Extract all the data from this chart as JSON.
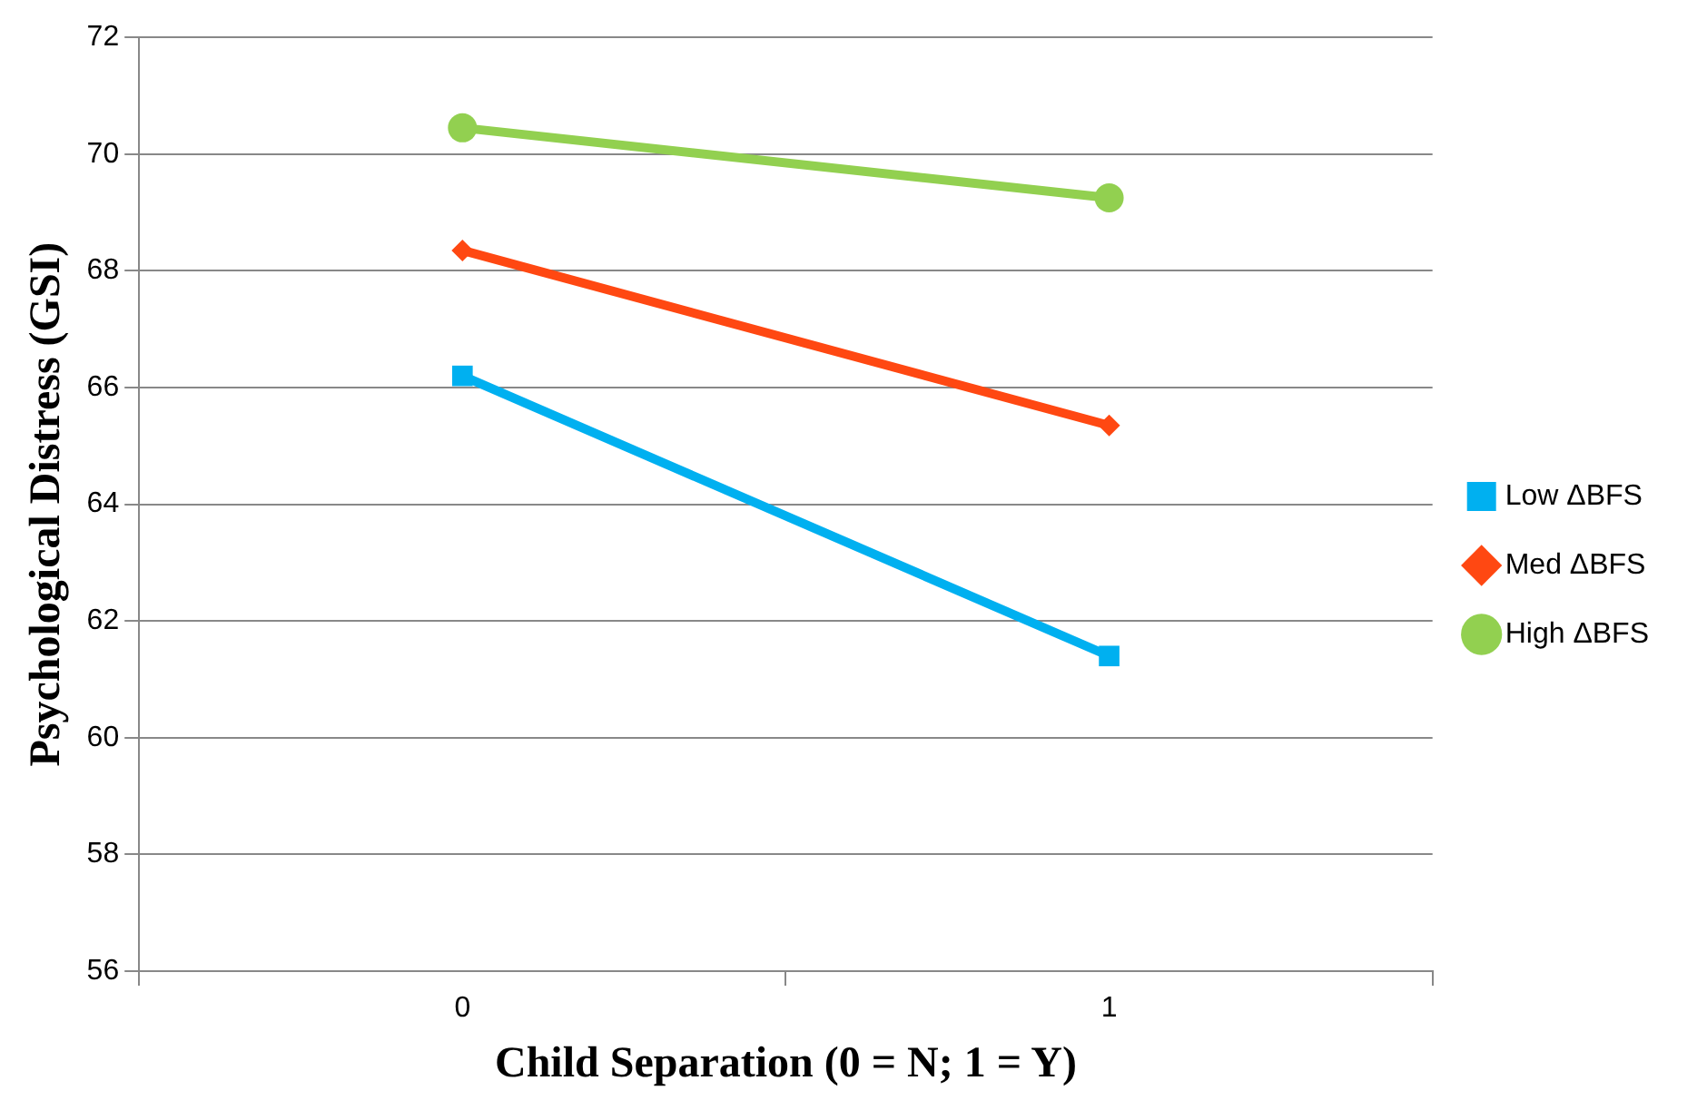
{
  "chart_data": {
    "type": "line",
    "xlabel": "Child Separation (0 = N; 1 = Y)",
    "ylabel": "Psychological Distress (GSI)",
    "categories": [
      "0",
      "1"
    ],
    "ylim": [
      56,
      72
    ],
    "yticks": [
      56,
      58,
      60,
      62,
      64,
      66,
      68,
      70,
      72
    ],
    "grid": "y",
    "legend": "right",
    "line_style": "solid",
    "series": [
      {
        "name": "Low ΔBFS",
        "color": "#00b0f0",
        "marker": "square",
        "values": [
          66.2,
          61.4
        ]
      },
      {
        "name": "Med ΔBFS",
        "color": "#ff4812",
        "marker": "diamond",
        "values": [
          68.35,
          65.35
        ]
      },
      {
        "name": "High ΔBFS",
        "color": "#92d050",
        "marker": "circle",
        "values": [
          70.45,
          69.25
        ]
      }
    ]
  }
}
